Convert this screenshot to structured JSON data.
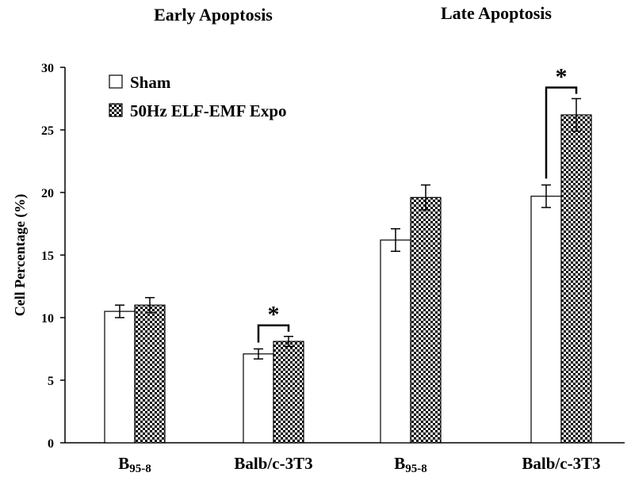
{
  "chart_data": {
    "type": "bar",
    "group_titles": [
      "Early Apoptosis",
      "Late Apoptosis"
    ],
    "categories": [
      {
        "main": "B",
        "sub": "95-8"
      },
      {
        "main": "Balb/c-3T3",
        "sub": ""
      },
      {
        "main": "B",
        "sub": "95-8"
      },
      {
        "main": "Balb/c-3T3",
        "sub": ""
      }
    ],
    "series": [
      {
        "name": "Sham",
        "values": [
          10.5,
          7.1,
          16.2,
          19.7
        ],
        "errors": [
          0.5,
          0.4,
          0.9,
          0.9
        ],
        "fill": "#ffffff"
      },
      {
        "name": "50Hz ELF-EMF Expo",
        "values": [
          11.0,
          8.1,
          19.6,
          26.2
        ],
        "errors": [
          0.6,
          0.4,
          1.0,
          1.3
        ],
        "fill": "checker"
      }
    ],
    "significance": [
      {
        "category_index": 1,
        "label": "*"
      },
      {
        "category_index": 3,
        "label": "*"
      }
    ],
    "ylabel": "Cell Percentage (%)",
    "ylim": [
      0,
      30
    ],
    "yticks": [
      "0",
      "5",
      "10",
      "15",
      "20",
      "25",
      "30"
    ],
    "legend_position": "top-left",
    "grid": false,
    "colors": {
      "axis": "#000000",
      "bar_stroke": "#000000"
    }
  }
}
